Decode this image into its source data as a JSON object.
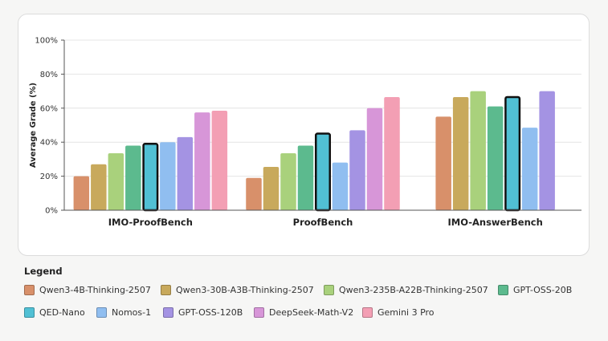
{
  "chart_data": {
    "type": "bar",
    "title": "",
    "xlabel": "",
    "ylabel": "Average Grade (%)",
    "ylim": [
      0,
      100
    ],
    "yticks": [
      0,
      20,
      40,
      60,
      80,
      100
    ],
    "ytick_suffix": "%",
    "grid": true,
    "categories": [
      "IMO-ProofBench",
      "ProofBench",
      "IMO-AnswerBench"
    ],
    "highlight_series": "QED-Nano",
    "series": [
      {
        "name": "Qwen3-4B-Thinking-2507",
        "color": "#d8906a",
        "values": [
          20,
          19,
          55
        ]
      },
      {
        "name": "Qwen3-30B-A3B-Thinking-2507",
        "color": "#c8a95c",
        "values": [
          27,
          25.5,
          66.5
        ]
      },
      {
        "name": "Qwen3-235B-A22B-Thinking-2507",
        "color": "#a9d17c",
        "values": [
          33.5,
          33.5,
          70
        ]
      },
      {
        "name": "GPT-OSS-20B",
        "color": "#5cba8e",
        "values": [
          38,
          38,
          61
        ]
      },
      {
        "name": "QED-Nano",
        "color": "#51c0d4",
        "values": [
          39.5,
          45.5,
          67
        ]
      },
      {
        "name": "Nomos-1",
        "color": "#90bef0",
        "values": [
          40,
          28,
          48.5
        ]
      },
      {
        "name": "GPT-OSS-120B",
        "color": "#a493e3",
        "values": [
          43,
          47,
          70
        ]
      },
      {
        "name": "DeepSeek-Math-V2",
        "color": "#d796d8",
        "values": [
          57.5,
          60,
          0
        ]
      },
      {
        "name": "Gemini 3 Pro",
        "color": "#f39fb4",
        "values": [
          58.5,
          66.5,
          0
        ]
      }
    ]
  },
  "legend": {
    "title": "Legend"
  }
}
